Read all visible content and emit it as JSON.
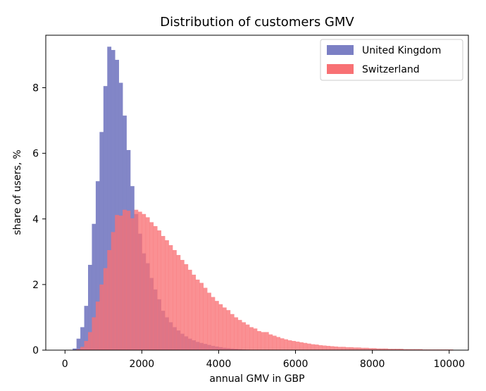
{
  "chart_data": {
    "type": "histogram",
    "title": "Distribution of customers GMV",
    "xlabel": "annual GMV in GBP",
    "ylabel": "share of users, %",
    "xlim": [
      -500,
      10500
    ],
    "ylim": [
      0,
      9.6
    ],
    "xticks": [
      0,
      2000,
      4000,
      6000,
      8000,
      10000
    ],
    "yticks": [
      0,
      2,
      4,
      6,
      8
    ],
    "bin_width": 100,
    "legend_position": "top-right",
    "series": [
      {
        "name": "United Kingdom",
        "color": "#7b7fc4",
        "start": 200,
        "values": [
          0.05,
          0.35,
          0.7,
          1.35,
          2.6,
          3.85,
          5.15,
          6.65,
          8.05,
          9.25,
          9.15,
          8.85,
          8.15,
          7.15,
          6.1,
          5.0,
          4.15,
          3.55,
          2.95,
          2.65,
          2.2,
          1.85,
          1.55,
          1.2,
          1.0,
          0.85,
          0.7,
          0.6,
          0.5,
          0.42,
          0.35,
          0.3,
          0.25,
          0.22,
          0.19,
          0.16,
          0.13,
          0.11,
          0.09,
          0.07,
          0.06,
          0.05,
          0.04,
          0.03,
          0.02,
          0.015,
          0.01,
          0.01,
          0.01,
          0.01
        ]
      },
      {
        "name": "Switzerland",
        "color": "#f87174",
        "start": 200,
        "values": [
          0.0,
          0.03,
          0.1,
          0.28,
          0.55,
          1.0,
          1.48,
          2.0,
          2.5,
          3.05,
          3.6,
          4.12,
          4.1,
          4.28,
          4.25,
          4.02,
          4.28,
          4.22,
          4.15,
          4.05,
          3.9,
          3.78,
          3.65,
          3.48,
          3.35,
          3.2,
          3.05,
          2.9,
          2.75,
          2.62,
          2.45,
          2.3,
          2.15,
          2.05,
          1.9,
          1.75,
          1.62,
          1.5,
          1.4,
          1.3,
          1.22,
          1.1,
          1.0,
          0.92,
          0.85,
          0.78,
          0.7,
          0.66,
          0.58,
          0.55,
          0.55,
          0.48,
          0.44,
          0.4,
          0.36,
          0.33,
          0.3,
          0.28,
          0.26,
          0.24,
          0.22,
          0.2,
          0.18,
          0.17,
          0.15,
          0.14,
          0.13,
          0.12,
          0.11,
          0.1,
          0.1,
          0.09,
          0.09,
          0.08,
          0.08,
          0.07,
          0.07,
          0.06,
          0.06,
          0.05,
          0.05,
          0.05,
          0.04,
          0.04,
          0.04,
          0.04,
          0.03,
          0.03,
          0.03,
          0.03,
          0.03,
          0.02,
          0.02,
          0.02,
          0.02,
          0.02,
          0.02,
          0.02,
          0.02
        ]
      }
    ]
  }
}
